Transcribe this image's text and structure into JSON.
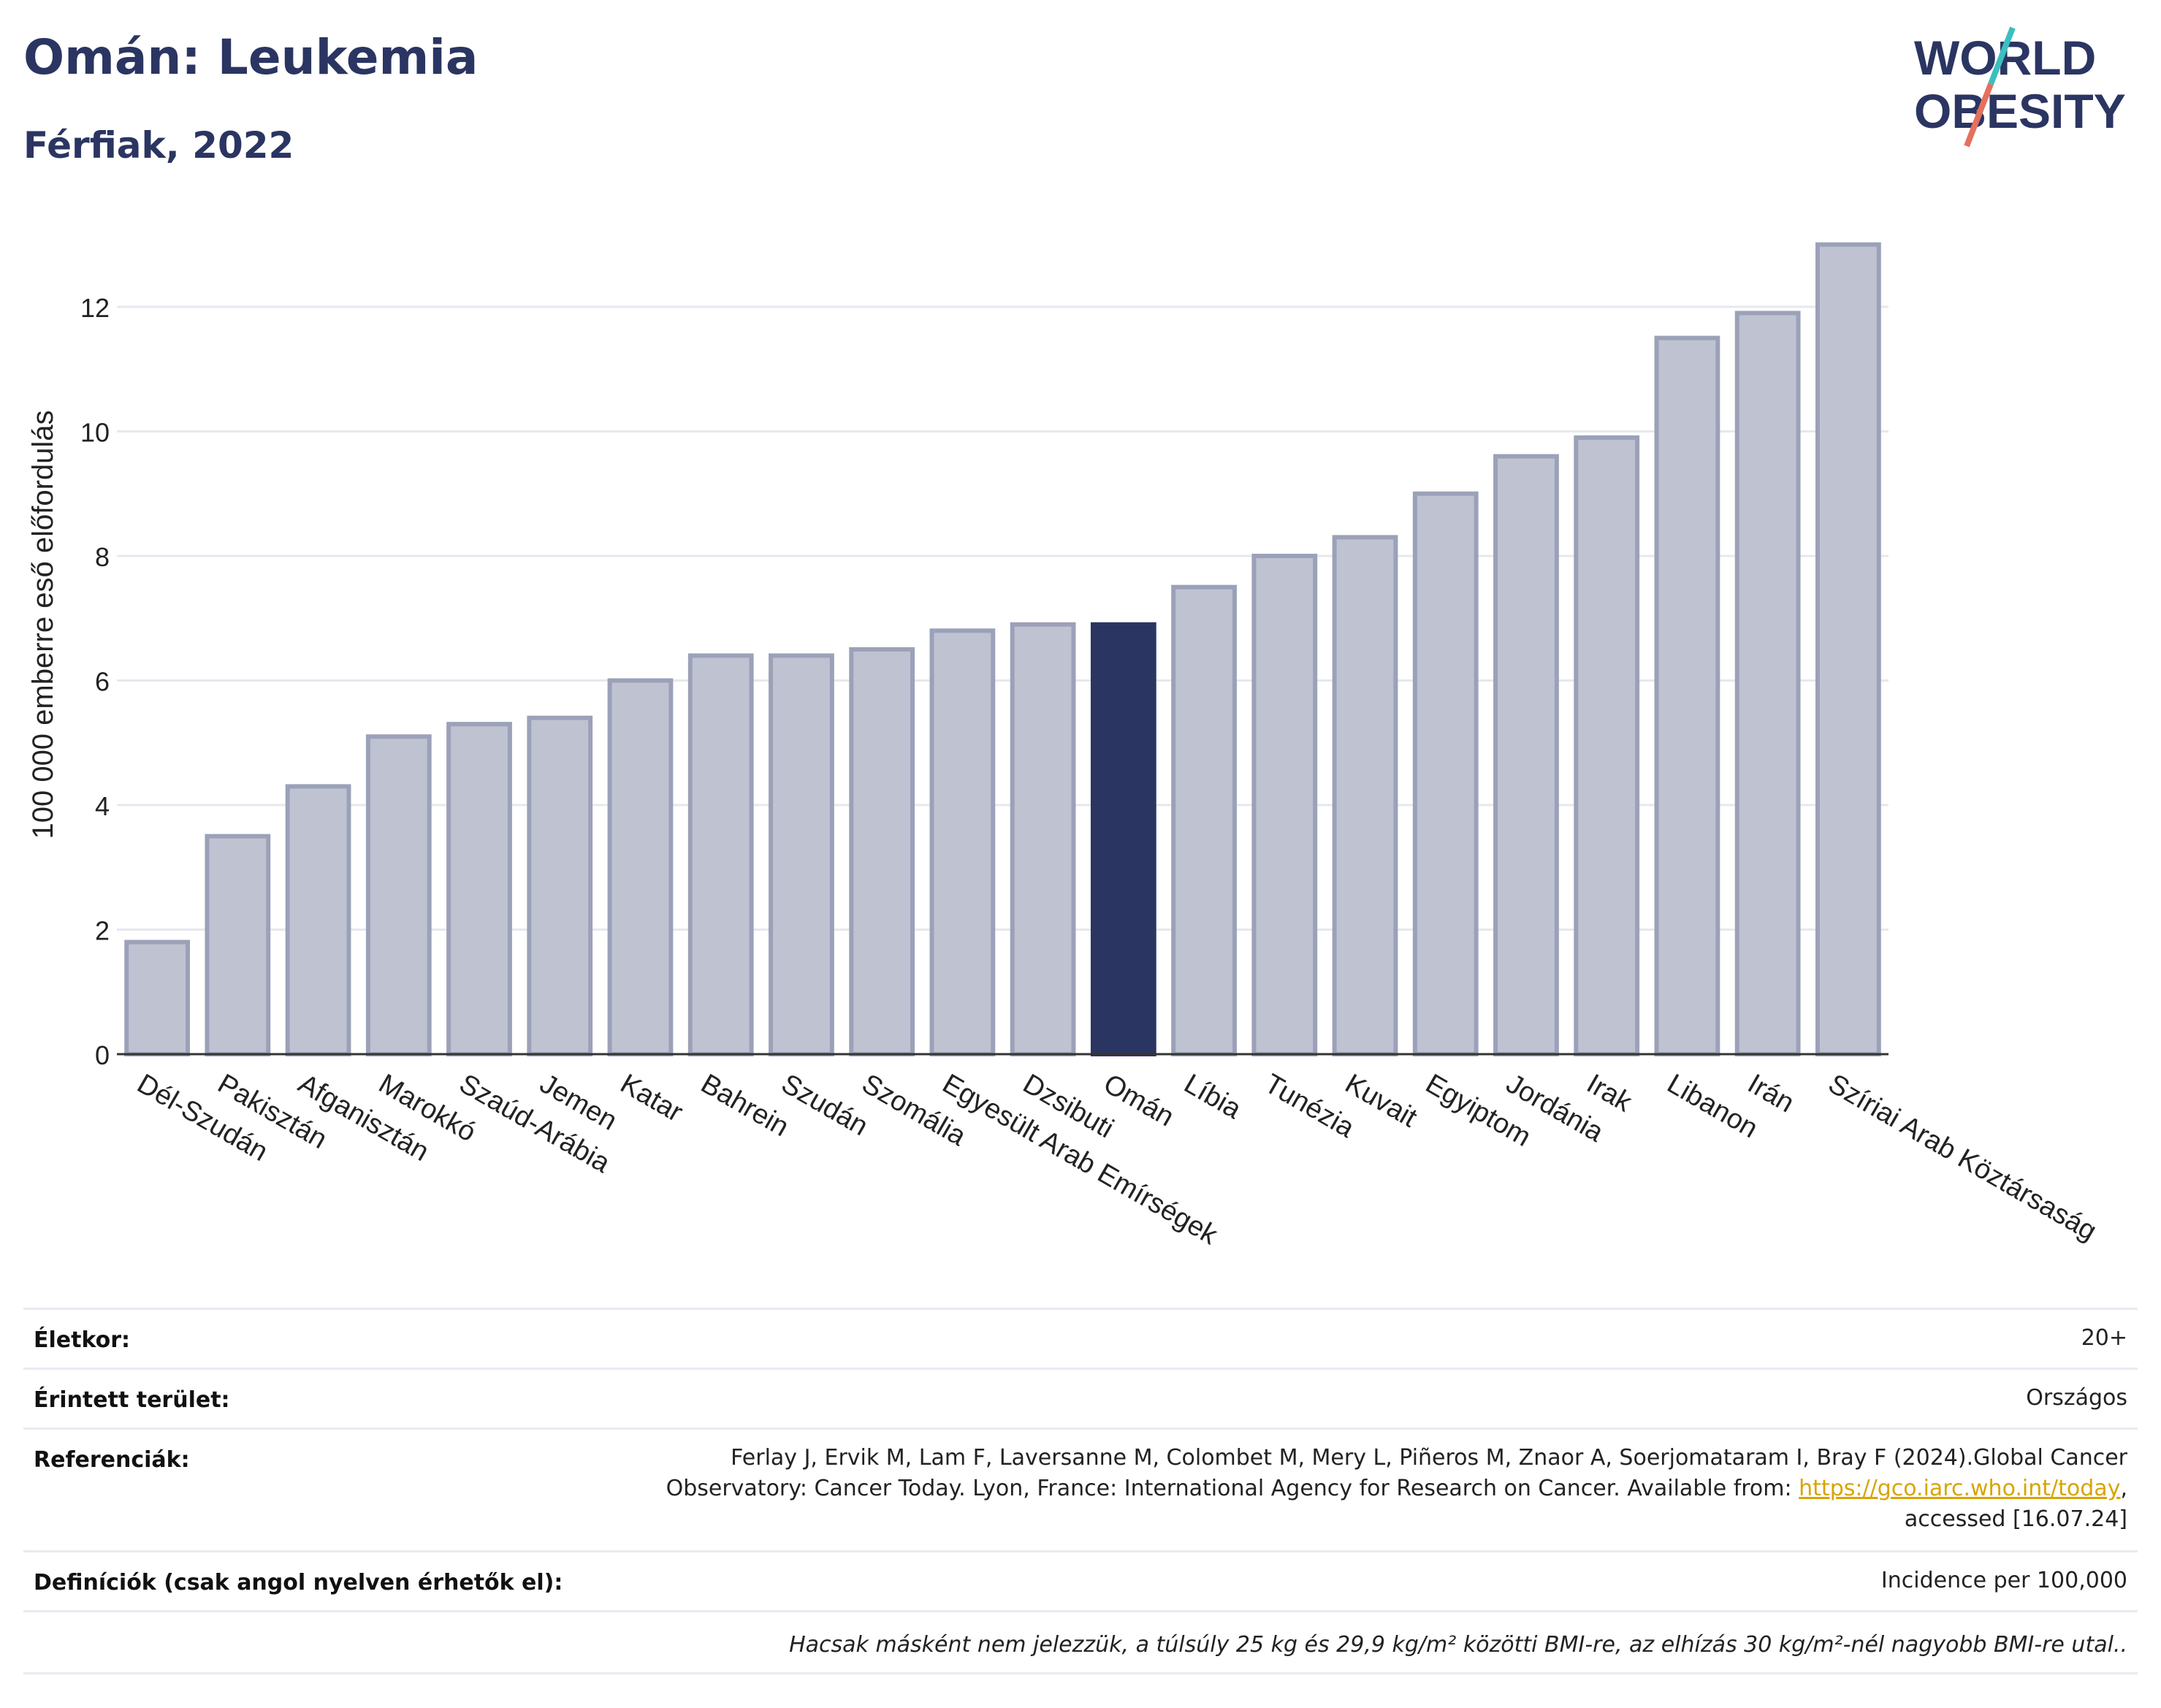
{
  "header": {
    "title": "Omán: Leukemia",
    "subtitle": "Férfiak, 2022",
    "logo_line1": "WORLD",
    "logo_line2": "OBESITY"
  },
  "colors": {
    "highlight": "#2b3562",
    "bar": "#bfc2d1",
    "bar_border": "#9ba1b8",
    "title": "#2b3562",
    "logo_teal": "#3bbfbf",
    "logo_coral": "#e5705e"
  },
  "chart_data": {
    "type": "bar",
    "title": "Omán: Leukemia",
    "subtitle": "Férfiak, 2022",
    "ylabel": "100 000 emberre eső előfordulás",
    "ylim": [
      0,
      13.5
    ],
    "yticks": [
      0,
      2,
      4,
      6,
      8,
      10,
      12
    ],
    "highlight": "Omán",
    "grid": true,
    "categories": [
      "Dél-Szudán",
      "Pakisztán",
      "Afganisztán",
      "Marokkó",
      "Szaúd-Arábia",
      "Jemen",
      "Katar",
      "Bahrein",
      "Szudán",
      "Szomália",
      "Egyesült Arab Emírségek",
      "Dzsibuti",
      "Omán",
      "Líbia",
      "Tunézia",
      "Kuvait",
      "Egyiptom",
      "Jordánia",
      "Irak",
      "Libanon",
      "Irán",
      "Szíriai Arab Köztársaság"
    ],
    "values": [
      1.8,
      3.5,
      4.3,
      5.1,
      5.3,
      5.4,
      6.0,
      6.4,
      6.4,
      6.5,
      6.8,
      6.9,
      6.9,
      7.5,
      8.0,
      8.3,
      9.0,
      9.6,
      9.9,
      11.5,
      11.9,
      13.0
    ]
  },
  "info": {
    "age_label": "Életkor:",
    "age_value": "20+",
    "area_label": "Érintett terület:",
    "area_value": "Országos",
    "ref_label": "Referenciák:",
    "ref_line1": "Ferlay J, Ervik M, Lam F, Laversanne M, Colombet M, Mery L, Piñeros M, Znaor A, Soerjomataram I, Bray F (2024).Global Cancer",
    "ref_line2_pre": "Observatory: Cancer Today. Lyon, France: International Agency for Research on Cancer. Available from: ",
    "ref_link": "https://gco.iarc.who.int/today",
    "ref_line2_post": ",",
    "ref_line3": "accessed [16.07.24]",
    "def_label": "Definíciók (csak angol nyelven érhetők el):",
    "def_value": "Incidence per 100,000",
    "note": "Hacsak másként nem jelezzük, a túlsúly 25 kg és 29,9 kg/m² közötti BMI-re, az elhízás 30 kg/m²-nél nagyobb BMI-re utal.."
  }
}
